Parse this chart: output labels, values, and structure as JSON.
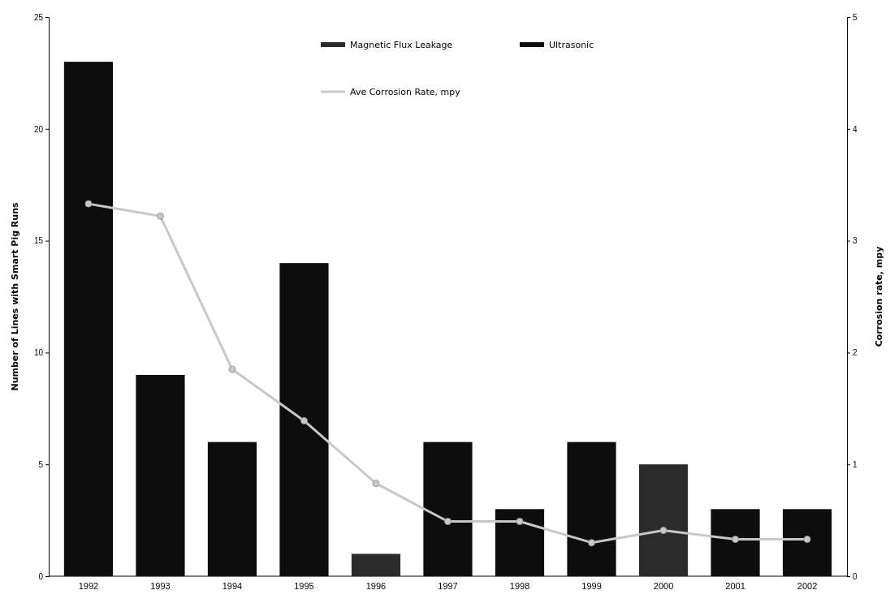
{
  "chart_data": {
    "type": "bar",
    "categories": [
      "1992",
      "1993",
      "1994",
      "1995",
      "1996",
      "1997",
      "1998",
      "1999",
      "2000",
      "2001",
      "2002"
    ],
    "ylabel": "Number of Lines with Smart Pig Runs",
    "y2label": "Corrosion rate, mpy",
    "ylim": [
      0,
      25
    ],
    "yticks": [
      0,
      5,
      10,
      15,
      20,
      25
    ],
    "y2lim": [
      0,
      5
    ],
    "y2ticks": [
      0,
      1,
      2,
      3,
      4,
      5
    ],
    "legend": "top",
    "grid": false,
    "series": [
      {
        "name": "Magnetic Flux Leakage",
        "color": "#2b2b2b",
        "values": [
          null,
          null,
          null,
          null,
          1,
          null,
          null,
          null,
          5,
          null,
          null
        ]
      },
      {
        "name": "Ultrasonic",
        "color": "#0d0d0d",
        "values": [
          23,
          9,
          6,
          14,
          null,
          6,
          3,
          6,
          null,
          3,
          3
        ]
      },
      {
        "name": "Ave Corrosion Rate, mpy",
        "type": "line",
        "axis": "y2",
        "color": "#c8c8c8",
        "marker": "circle",
        "values": [
          3.33,
          3.22,
          1.85,
          1.39,
          0.83,
          0.49,
          0.49,
          0.3,
          0.41,
          0.33,
          0.33
        ]
      }
    ]
  }
}
